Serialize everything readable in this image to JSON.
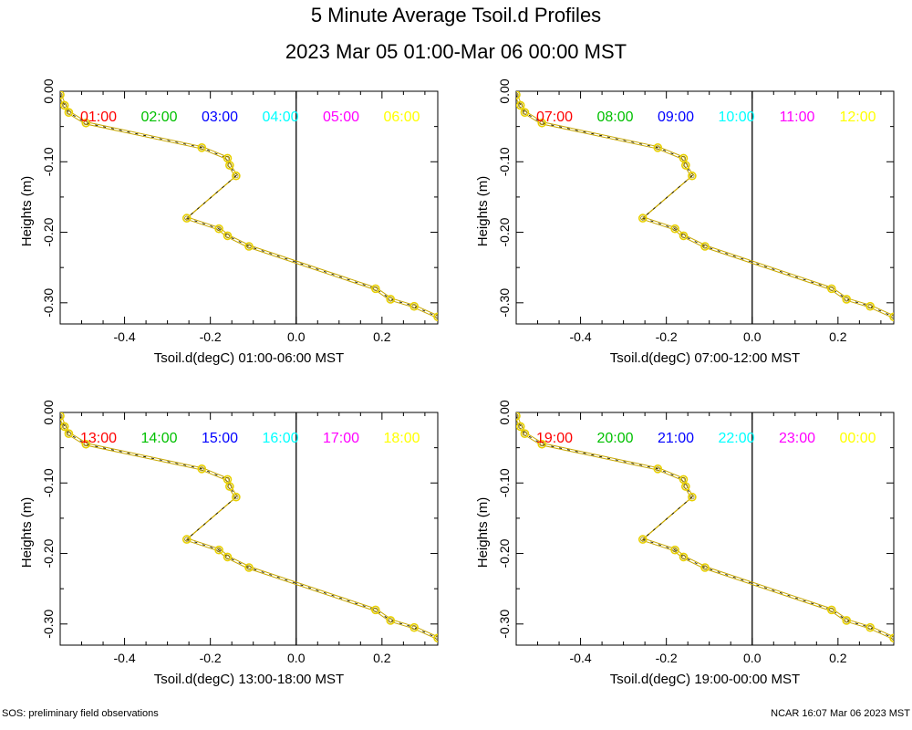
{
  "title": "5 Minute Average Tsoil.d Profiles",
  "subtitle": "2023 Mar 05 01:00-Mar 06 00:00 MST",
  "footer_left": "SOS: preliminary field observations",
  "footer_right": "NCAR 16:07 Mar 06 2023 MST",
  "colors": {
    "line": "#c8a800",
    "marker": "#e8d000",
    "hours": [
      "#ff0000",
      "#00c000",
      "#0000ff",
      "#00ffff",
      "#ff00ff",
      "#ffff00"
    ]
  },
  "chart_data": [
    {
      "type": "line",
      "xlabel": "Tsoil.d(degC) 01:00-06:00 MST",
      "ylabel": "Heights (m)",
      "xlim": [
        -0.55,
        0.33
      ],
      "ylim": [
        -0.33,
        0.0
      ],
      "x_ticks": [
        "-0.4",
        "-0.2",
        "0.0",
        "0.2"
      ],
      "y_ticks": [
        "0.00",
        "-0.10",
        "-0.20",
        "-0.30"
      ],
      "legend": [
        "01:00",
        "02:00",
        "03:00",
        "04:00",
        "05:00",
        "06:00"
      ],
      "x": [
        -0.55,
        -0.54,
        -0.53,
        -0.49,
        -0.22,
        -0.16,
        -0.155,
        -0.14,
        -0.255,
        -0.18,
        -0.16,
        -0.11,
        0.185,
        0.22,
        0.275,
        0.33
      ],
      "y": [
        -0.005,
        -0.02,
        -0.03,
        -0.045,
        -0.08,
        -0.095,
        -0.105,
        -0.12,
        -0.18,
        -0.195,
        -0.205,
        -0.22,
        -0.28,
        -0.295,
        -0.305,
        -0.32
      ]
    },
    {
      "type": "line",
      "xlabel": "Tsoil.d(degC) 07:00-12:00 MST",
      "ylabel": "Heights (m)",
      "xlim": [
        -0.55,
        0.33
      ],
      "ylim": [
        -0.33,
        0.0
      ],
      "x_ticks": [
        "-0.4",
        "-0.2",
        "0.0",
        "0.2"
      ],
      "y_ticks": [
        "0.00",
        "-0.10",
        "-0.20",
        "-0.30"
      ],
      "legend": [
        "07:00",
        "08:00",
        "09:00",
        "10:00",
        "11:00",
        "12:00"
      ],
      "x": [
        -0.55,
        -0.54,
        -0.53,
        -0.49,
        -0.22,
        -0.16,
        -0.155,
        -0.14,
        -0.255,
        -0.18,
        -0.16,
        -0.11,
        0.185,
        0.22,
        0.275,
        0.33
      ],
      "y": [
        -0.005,
        -0.02,
        -0.03,
        -0.045,
        -0.08,
        -0.095,
        -0.105,
        -0.12,
        -0.18,
        -0.195,
        -0.205,
        -0.22,
        -0.28,
        -0.295,
        -0.305,
        -0.32
      ]
    },
    {
      "type": "line",
      "xlabel": "Tsoil.d(degC) 13:00-18:00 MST",
      "ylabel": "Heights (m)",
      "xlim": [
        -0.55,
        0.33
      ],
      "ylim": [
        -0.33,
        0.0
      ],
      "x_ticks": [
        "-0.4",
        "-0.2",
        "0.0",
        "0.2"
      ],
      "y_ticks": [
        "0.00",
        "-0.10",
        "-0.20",
        "-0.30"
      ],
      "legend": [
        "13:00",
        "14:00",
        "15:00",
        "16:00",
        "17:00",
        "18:00"
      ],
      "x": [
        -0.55,
        -0.54,
        -0.53,
        -0.49,
        -0.22,
        -0.16,
        -0.155,
        -0.14,
        -0.255,
        -0.18,
        -0.16,
        -0.11,
        0.185,
        0.22,
        0.275,
        0.33
      ],
      "y": [
        -0.005,
        -0.02,
        -0.03,
        -0.045,
        -0.08,
        -0.095,
        -0.105,
        -0.12,
        -0.18,
        -0.195,
        -0.205,
        -0.22,
        -0.28,
        -0.295,
        -0.305,
        -0.32
      ]
    },
    {
      "type": "line",
      "xlabel": "Tsoil.d(degC) 19:00-00:00 MST",
      "ylabel": "Heights (m)",
      "xlim": [
        -0.55,
        0.33
      ],
      "ylim": [
        -0.33,
        0.0
      ],
      "x_ticks": [
        "-0.4",
        "-0.2",
        "0.0",
        "0.2"
      ],
      "y_ticks": [
        "0.00",
        "-0.10",
        "-0.20",
        "-0.30"
      ],
      "legend": [
        "19:00",
        "20:00",
        "21:00",
        "22:00",
        "23:00",
        "00:00"
      ],
      "x": [
        -0.55,
        -0.54,
        -0.53,
        -0.49,
        -0.22,
        -0.16,
        -0.155,
        -0.14,
        -0.255,
        -0.18,
        -0.16,
        -0.11,
        0.185,
        0.22,
        0.275,
        0.33
      ],
      "y": [
        -0.005,
        -0.02,
        -0.03,
        -0.045,
        -0.08,
        -0.095,
        -0.105,
        -0.12,
        -0.18,
        -0.195,
        -0.205,
        -0.22,
        -0.28,
        -0.295,
        -0.305,
        -0.32
      ]
    }
  ]
}
